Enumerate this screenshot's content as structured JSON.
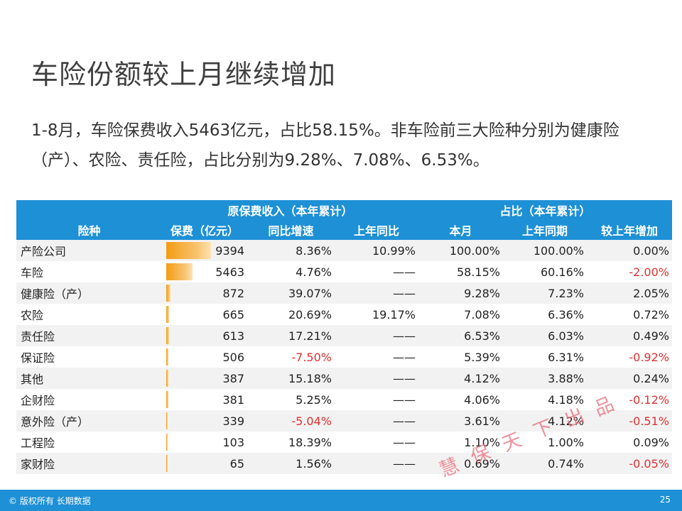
{
  "title": "车险份额较上月继续增加",
  "paragraph": "1-8月，车险保费收入5463亿元，占比58.15%。非车险前三大险种分别为健康险（产）、农险、责任险，占比分别为9.28%、7.08%、6.53%。",
  "table": {
    "group_headers": {
      "premium": "原保费收入（本年累计）",
      "share": "占比（本年累计）"
    },
    "columns": [
      "险种",
      "保费（亿元）",
      "同比增速",
      "上年同比",
      "本月",
      "上年同期",
      "较上年增加"
    ],
    "rows": [
      {
        "name": "产险公司",
        "premium": "9394",
        "bar": 1.0,
        "growth": "8.36%",
        "last_growth": "10.99%",
        "month": "100.00%",
        "last_period": "100.00%",
        "change": "0.00%"
      },
      {
        "name": "车险",
        "premium": "5463",
        "bar": 0.5815,
        "growth": "4.76%",
        "last_growth": "——",
        "month": "58.15%",
        "last_period": "60.16%",
        "change": "-2.00%"
      },
      {
        "name": "健康险（产）",
        "premium": "872",
        "bar": 0.0928,
        "growth": "39.07%",
        "last_growth": "——",
        "month": "9.28%",
        "last_period": "7.23%",
        "change": "2.05%"
      },
      {
        "name": "农险",
        "premium": "665",
        "bar": 0.0708,
        "growth": "20.69%",
        "last_growth": "19.17%",
        "month": "7.08%",
        "last_period": "6.36%",
        "change": "0.72%"
      },
      {
        "name": "责任险",
        "premium": "613",
        "bar": 0.0653,
        "growth": "17.21%",
        "last_growth": "——",
        "month": "6.53%",
        "last_period": "6.03%",
        "change": "0.49%"
      },
      {
        "name": "保证险",
        "premium": "506",
        "bar": 0.0539,
        "growth": "-7.50%",
        "last_growth": "——",
        "month": "5.39%",
        "last_period": "6.31%",
        "change": "-0.92%"
      },
      {
        "name": "其他",
        "premium": "387",
        "bar": 0.0412,
        "growth": "15.18%",
        "last_growth": "——",
        "month": "4.12%",
        "last_period": "3.88%",
        "change": "0.24%"
      },
      {
        "name": "企财险",
        "premium": "381",
        "bar": 0.0406,
        "growth": "5.25%",
        "last_growth": "——",
        "month": "4.06%",
        "last_period": "4.18%",
        "change": "-0.12%"
      },
      {
        "name": "意外险（产）",
        "premium": "339",
        "bar": 0.0361,
        "growth": "-5.04%",
        "last_growth": "——",
        "month": "3.61%",
        "last_period": "4.12%",
        "change": "-0.51%"
      },
      {
        "name": "工程险",
        "premium": "103",
        "bar": 0.011,
        "growth": "18.39%",
        "last_growth": "——",
        "month": "1.10%",
        "last_period": "1.00%",
        "change": "0.09%"
      },
      {
        "name": "家财险",
        "premium": "65",
        "bar": 0.0069,
        "growth": "1.56%",
        "last_growth": "——",
        "month": "0.69%",
        "last_period": "0.74%",
        "change": "-0.05%"
      }
    ]
  },
  "watermark": [
    "慧",
    "保",
    "天",
    "下",
    "出",
    "品"
  ],
  "footer": {
    "copyright": "© 版权所有 长期数据",
    "page_number": "25"
  },
  "colors": {
    "header_bg": "#1E90D6",
    "negative": "#E03030",
    "bar": "#F39C12",
    "watermark": "#E8707E"
  }
}
